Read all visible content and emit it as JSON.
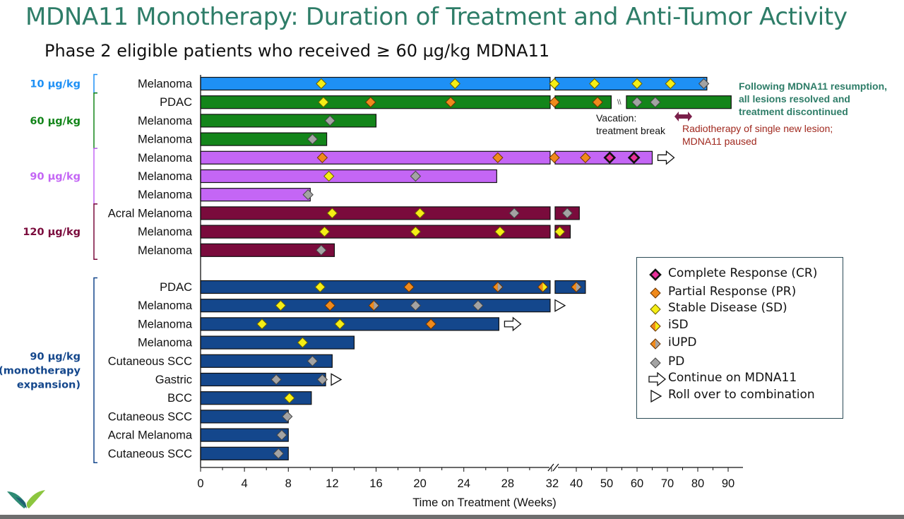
{
  "title": "MDNA11 Monotherapy:  Duration of Treatment and Anti-Tumor Activity",
  "subtitle": "Phase 2 eligible patients who received ≥ 60 µg/kg MDNA11",
  "colors": {
    "cyan": "#1e90f5",
    "green": "#13851a",
    "violet": "#c466f5",
    "maroon": "#7a0b3c",
    "navy": "#14478c",
    "title": "#2e7d68"
  },
  "chart_data": {
    "type": "bar",
    "orientation": "horizontal",
    "xlabel": "Time on Treatment  (Weeks)",
    "x_ticks": [
      "0",
      "4",
      "8",
      "12",
      "16",
      "20",
      "24",
      "28",
      "32",
      "40",
      "50",
      "60",
      "70",
      "80",
      "90"
    ],
    "x_axis_break_after": 32,
    "dose_groups": [
      {
        "label": "10 µg/kg",
        "color_key": "cyan",
        "rows": [
          0,
          0
        ]
      },
      {
        "label": "60 µg/kg",
        "color_key": "green",
        "rows": [
          1,
          3
        ]
      },
      {
        "label": "90 µg/kg",
        "color_key": "violet",
        "rows": [
          4,
          6
        ]
      },
      {
        "label": "120 µg/kg",
        "color_key": "maroon",
        "rows": [
          7,
          9
        ]
      },
      {
        "label": "90 µg/kg (monotherapy expansion)",
        "label_lines": [
          "90 µg/kg",
          "(monotherapy",
          "expansion)"
        ],
        "color_key": "navy",
        "rows": [
          10,
          19
        ]
      }
    ],
    "patients": [
      {
        "label": "Melanoma",
        "color_key": "cyan",
        "duration": 83,
        "markers": [
          [
            "SD",
            11
          ],
          [
            "SD",
            23.2
          ],
          [
            "SD",
            32.7
          ],
          [
            "SD",
            46
          ],
          [
            "SD",
            60
          ],
          [
            "SD",
            71
          ],
          [
            "PD",
            82
          ]
        ]
      },
      {
        "label": "PDAC",
        "color_key": "green",
        "duration": 91,
        "vacation": [
          51.5,
          56.5
        ],
        "markers": [
          [
            "SD",
            11.2
          ],
          [
            "PR",
            15.5
          ],
          [
            "PR",
            22.8
          ],
          [
            "PR",
            32.7
          ],
          [
            "PR",
            47
          ],
          [
            "PD",
            60
          ],
          [
            "PD",
            66
          ]
        ]
      },
      {
        "label": "Melanoma",
        "color_key": "green",
        "duration": 16,
        "markers": [
          [
            "PD",
            11.8
          ]
        ]
      },
      {
        "label": "Melanoma",
        "color_key": "green",
        "duration": 11.5,
        "markers": [
          [
            "PD",
            10.2
          ]
        ]
      },
      {
        "label": "Melanoma",
        "color_key": "violet",
        "duration": 65,
        "arrow": "continue",
        "markers": [
          [
            "PR",
            11.1
          ],
          [
            "PR",
            27.1
          ],
          [
            "PR",
            32.7
          ],
          [
            "PR",
            43
          ],
          [
            "CR",
            51
          ],
          [
            "CR",
            59
          ]
        ]
      },
      {
        "label": "Melanoma",
        "color_key": "violet",
        "duration": 27,
        "markers": [
          [
            "SD",
            11.7
          ],
          [
            "PD",
            19.6
          ]
        ]
      },
      {
        "label": "Melanoma",
        "color_key": "violet",
        "duration": 10,
        "markers": [
          [
            "PD",
            9.8
          ]
        ]
      },
      {
        "label": "Acral Melanoma",
        "color_key": "maroon",
        "duration": 41,
        "markers": [
          [
            "SD",
            12
          ],
          [
            "SD",
            20
          ],
          [
            "PD",
            28.6
          ],
          [
            "PD",
            37
          ]
        ]
      },
      {
        "label": "Melanoma",
        "color_key": "maroon",
        "duration": 38,
        "markers": [
          [
            "SD",
            11.3
          ],
          [
            "SD",
            19.6
          ],
          [
            "SD",
            27.3
          ],
          [
            "SD",
            34.5
          ]
        ]
      },
      {
        "label": "Melanoma",
        "color_key": "maroon",
        "duration": 12.2,
        "markers": [
          [
            "PD",
            11
          ]
        ]
      },
      {
        "label": "PDAC",
        "color_key": "navy",
        "duration": 43,
        "markers": [
          [
            "SD",
            10.9
          ],
          [
            "PR",
            19
          ],
          [
            "iUPD",
            27.1
          ],
          [
            "iSD",
            31.2
          ],
          [
            "iUPD",
            40
          ]
        ]
      },
      {
        "label": "Melanoma",
        "color_key": "navy",
        "duration": 32,
        "arrow": "rollover",
        "markers": [
          [
            "SD",
            7.3
          ],
          [
            "PR",
            11.8
          ],
          [
            "iUPD",
            15.8
          ],
          [
            "PD",
            19.6
          ],
          [
            "PD",
            25.3
          ]
        ]
      },
      {
        "label": "Melanoma",
        "color_key": "navy",
        "duration": 27.2,
        "arrow": "continue",
        "markers": [
          [
            "SD",
            5.6
          ],
          [
            "SD",
            12.7
          ],
          [
            "PR",
            21
          ]
        ]
      },
      {
        "label": "Melanoma",
        "color_key": "navy",
        "duration": 14,
        "markers": [
          [
            "SD",
            9.3
          ]
        ]
      },
      {
        "label": "Cutaneous SCC",
        "color_key": "navy",
        "duration": 12,
        "markers": [
          [
            "PD",
            10.2
          ]
        ]
      },
      {
        "label": "Gastric",
        "color_key": "navy",
        "duration": 11.4,
        "arrow": "rollover",
        "markers": [
          [
            "PD",
            6.9
          ],
          [
            "PD",
            11.1
          ]
        ]
      },
      {
        "label": "BCC",
        "color_key": "navy",
        "duration": 10.1,
        "markers": [
          [
            "SD",
            8.1
          ]
        ]
      },
      {
        "label": "Cutaneous SCC",
        "color_key": "navy",
        "duration": 8,
        "markers": [
          [
            "PD",
            7.9
          ]
        ]
      },
      {
        "label": "Acral Melanoma",
        "color_key": "navy",
        "duration": 8,
        "markers": [
          [
            "PD",
            7.4
          ]
        ]
      },
      {
        "label": "Cutaneous SCC",
        "color_key": "navy",
        "duration": 8,
        "markers": [
          [
            "PD",
            7.1
          ]
        ]
      }
    ],
    "marker_styles": {
      "CR": {
        "fill": "#e8309a",
        "stroke": "#111",
        "thick": true
      },
      "PR": {
        "fill": "#f08a1c",
        "stroke": "#6a3300"
      },
      "SD": {
        "fill": "#f5ee16",
        "stroke": "#6a6000"
      },
      "PD": {
        "fill": "#a3a3a3",
        "stroke": "#444"
      },
      "iSD": {
        "left": "#f08a1c",
        "right": "#f5ee16",
        "stroke": "#6a3300"
      },
      "iUPD": {
        "left": "#f08a1c",
        "right": "#a3a3a3",
        "stroke": "#6a3300"
      }
    },
    "annotations": {
      "resumption": [
        "Following MDNA11 resumption,",
        "all lesions resolved and",
        "treatment discontinued"
      ],
      "vacation": [
        "Vacation:",
        "treatment break"
      ],
      "vacation_mark": "\\\\",
      "radiotherapy": [
        "Radiotherapy of single new lesion;",
        "MDNA11 paused"
      ]
    },
    "legend": [
      {
        "key": "CR",
        "label": "Complete Response (CR)"
      },
      {
        "key": "PR",
        "label": "Partial Response (PR)"
      },
      {
        "key": "SD",
        "label": "Stable Disease (SD)"
      },
      {
        "key": "iSD",
        "label": "iSD"
      },
      {
        "key": "iUPD",
        "label": "iUPD"
      },
      {
        "key": "PD",
        "label": "PD"
      },
      {
        "key": "continue",
        "label": "Continue on MDNA11"
      },
      {
        "key": "rollover",
        "label": "Roll over to combination"
      }
    ]
  }
}
